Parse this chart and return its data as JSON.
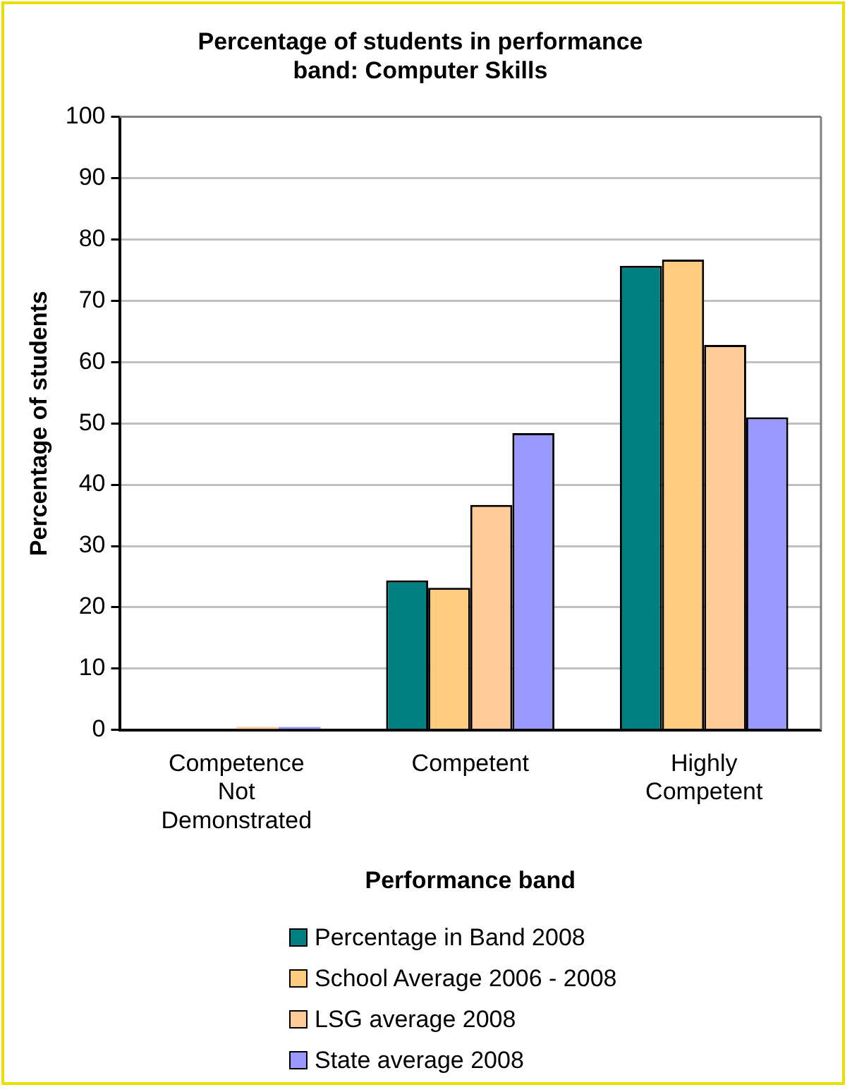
{
  "chart_data": {
    "type": "bar",
    "title": "Percentage of students in performance band: Computer Skills",
    "xlabel": "Performance band",
    "ylabel": "Percentage of students",
    "categories": [
      "Competence Not Demonstrated",
      "Competent",
      "Highly Competent"
    ],
    "series": [
      {
        "name": "Percentage in Band 2008",
        "color": "#008080",
        "values": [
          0,
          24.4,
          75.7
        ]
      },
      {
        "name": "School Average 2006 - 2008",
        "color": "#ffcc80",
        "values": [
          0,
          23.2,
          76.7
        ]
      },
      {
        "name": "LSG average 2008",
        "color": "#ffcc99",
        "values": [
          0.5,
          36.7,
          62.8
        ]
      },
      {
        "name": "State average 2008",
        "color": "#9999ff",
        "values": [
          0.5,
          48.4,
          51.0
        ]
      }
    ],
    "ylim": [
      0,
      100
    ],
    "yticks": [
      0,
      10,
      20,
      30,
      40,
      50,
      60,
      70,
      80,
      90,
      100
    ],
    "grid": "y",
    "legend": "bottom"
  }
}
